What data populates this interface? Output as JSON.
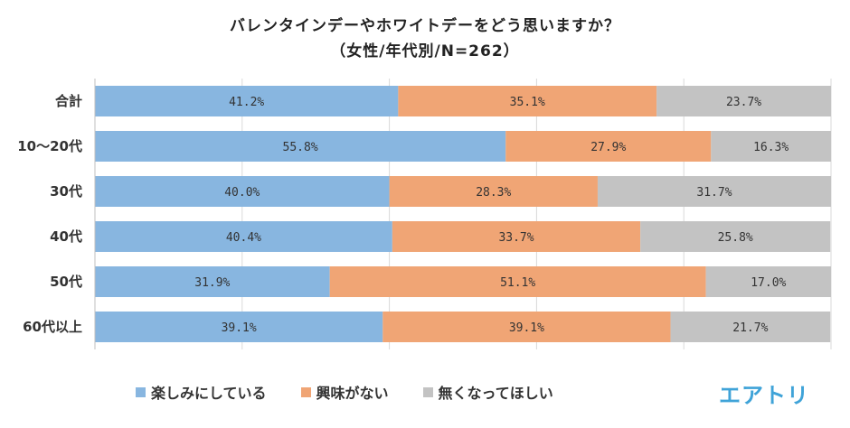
{
  "header": {
    "title": "バレンタインデーやホワイトデーをどう思いますか？",
    "subtitle": "（女性/年代別/N=262）"
  },
  "logo": {
    "text": "エアトリ"
  },
  "chart_data": {
    "type": "bar",
    "orientation": "horizontal",
    "stacked": "100%",
    "categories": [
      "合計",
      "10～20代",
      "30代",
      "40代",
      "50代",
      "60代以上"
    ],
    "series": [
      {
        "name": "楽しみにしている",
        "color": "#88b6e0",
        "values": [
          41.2,
          55.8,
          40.0,
          40.4,
          31.9,
          39.1
        ],
        "labels": [
          "41.2%",
          "55.8%",
          "40.0%",
          "40.4%",
          "31.9%",
          "39.1%"
        ]
      },
      {
        "name": "興味がない",
        "color": "#f0a575",
        "values": [
          35.1,
          27.9,
          28.3,
          33.7,
          51.1,
          39.1
        ],
        "labels": [
          "35.1%",
          "27.9%",
          "28.3%",
          "33.7%",
          "51.1%",
          "39.1%"
        ]
      },
      {
        "name": "無くなってほしい",
        "color": "#c3c3c3",
        "values": [
          23.7,
          16.3,
          31.7,
          25.8,
          17.0,
          21.7
        ],
        "labels": [
          "23.7%",
          "16.3%",
          "31.7%",
          "25.8%",
          "17.0%",
          "21.7%"
        ]
      }
    ],
    "xlim": [
      0,
      100
    ],
    "grid": true,
    "legend_position": "bottom"
  }
}
